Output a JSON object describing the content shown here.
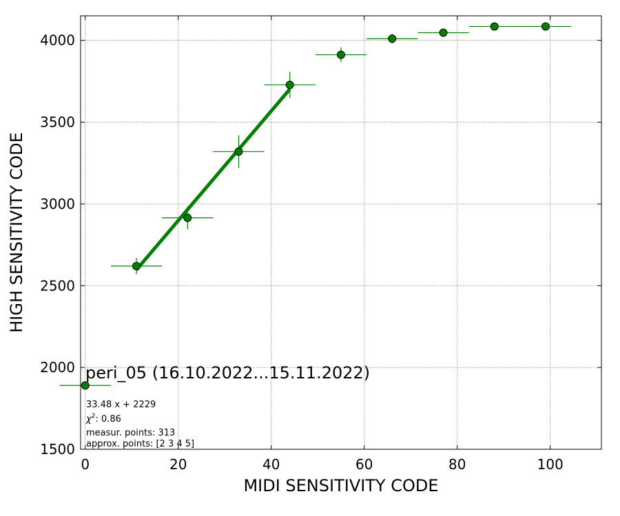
{
  "chart_data": {
    "type": "scatter",
    "title": "",
    "xlabel": "MIDI SENSITIVITY CODE",
    "ylabel": "HIGH SENSITIVITY CODE",
    "xlim": [
      -1,
      111
    ],
    "ylim": [
      1500,
      4150
    ],
    "xticks": [
      0,
      20,
      40,
      60,
      80,
      100
    ],
    "yticks": [
      1500,
      2000,
      2500,
      3000,
      3500,
      4000
    ],
    "grid": true,
    "colors": {
      "marker": "#008000",
      "marker_edge": "#000000",
      "fit_line": "#008000",
      "grid": "#808080"
    },
    "series": [
      {
        "kind": "measurements",
        "points": [
          {
            "x": 0,
            "y": 1890,
            "xerr": 5.5,
            "yerr": 0
          },
          {
            "x": 11,
            "y": 2620,
            "xerr": 5.5,
            "yerr": 50
          },
          {
            "x": 22,
            "y": 2915,
            "xerr": 5.5,
            "yerr": 70
          },
          {
            "x": 33,
            "y": 3320,
            "xerr": 5.5,
            "yerr": 100
          },
          {
            "x": 44,
            "y": 3728,
            "xerr": 5.5,
            "yerr": 80
          },
          {
            "x": 55,
            "y": 3912,
            "xerr": 5.5,
            "yerr": 45
          },
          {
            "x": 66,
            "y": 4010,
            "xerr": 5.5,
            "yerr": 30
          },
          {
            "x": 77,
            "y": 4047,
            "xerr": 5.5,
            "yerr": 10
          },
          {
            "x": 88,
            "y": 4085,
            "xerr": 5.5,
            "yerr": 0
          },
          {
            "x": 99,
            "y": 4085,
            "xerr": 5.5,
            "yerr": 0
          }
        ]
      },
      {
        "kind": "fit",
        "x": [
          11,
          44
        ],
        "y": [
          2597,
          3702
        ]
      }
    ],
    "annotations": {
      "title": "peri_05 (16.10.2022...15.11.2022)",
      "formula": "33.48 x + 2229",
      "chi_symbol": "χ",
      "chi_power": "2",
      "chi_value": ": 0.86",
      "measured": "measur. points: 313",
      "approx": "approx. points: [2 3 4 5]"
    }
  }
}
